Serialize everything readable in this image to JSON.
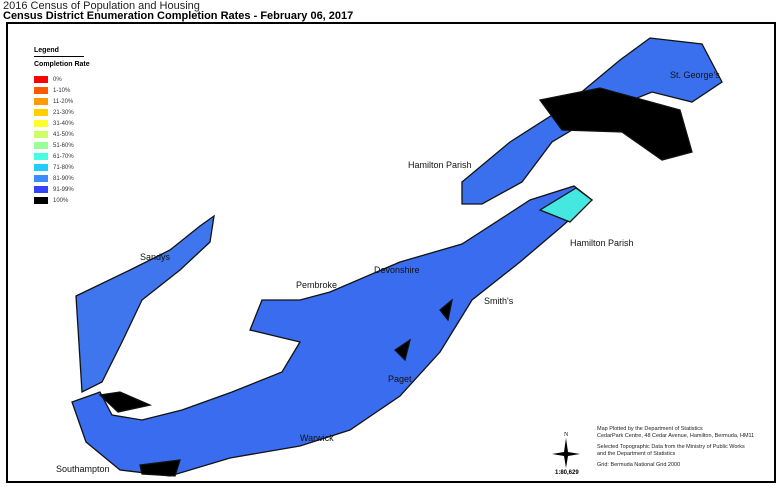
{
  "header": {
    "subtitle": "2016 Census of Population and Housing",
    "title": "Census District Enumeration Completion Rates - February 06, 2017"
  },
  "legend": {
    "title": "Legend",
    "subtitle": "Completion Rate",
    "items": [
      {
        "label": "0%",
        "color": "#ff0000"
      },
      {
        "label": "1-10%",
        "color": "#ff5a00"
      },
      {
        "label": "11-20%",
        "color": "#ff9a00"
      },
      {
        "label": "21-30%",
        "color": "#ffcf00"
      },
      {
        "label": "31-40%",
        "color": "#ffff2a"
      },
      {
        "label": "41-50%",
        "color": "#ccff66"
      },
      {
        "label": "51-60%",
        "color": "#99ff99"
      },
      {
        "label": "61-70%",
        "color": "#44ffe0"
      },
      {
        "label": "71-80%",
        "color": "#22ccff"
      },
      {
        "label": "81-90%",
        "color": "#3a8cff"
      },
      {
        "label": "91-99%",
        "color": "#3344ff"
      },
      {
        "label": "100%",
        "color": "#000000"
      }
    ]
  },
  "parishes": {
    "st_georges": "St. George's",
    "hamilton_parish_n": "Hamilton Parish",
    "hamilton_parish_e": "Hamilton Parish",
    "sandys": "Sandys",
    "pembroke": "Pembroke",
    "devonshire": "Devonshire",
    "smiths": "Smith's",
    "paget": "Paget",
    "warwick": "Warwick",
    "southampton": "Southampton"
  },
  "footer": {
    "line1": "Map Plotted by the Department of Statistics",
    "line2": "CedarPark Centre, 48 Cedar Avenue, Hamilton, Bermuda, HM11",
    "line3": "Selected Topographic Data from the Ministry of Public Works",
    "line4": "and the Department of Statistics",
    "line5": "Grid: Bermuda National Grid 2000",
    "scale": "1:80,629",
    "north": "N"
  }
}
